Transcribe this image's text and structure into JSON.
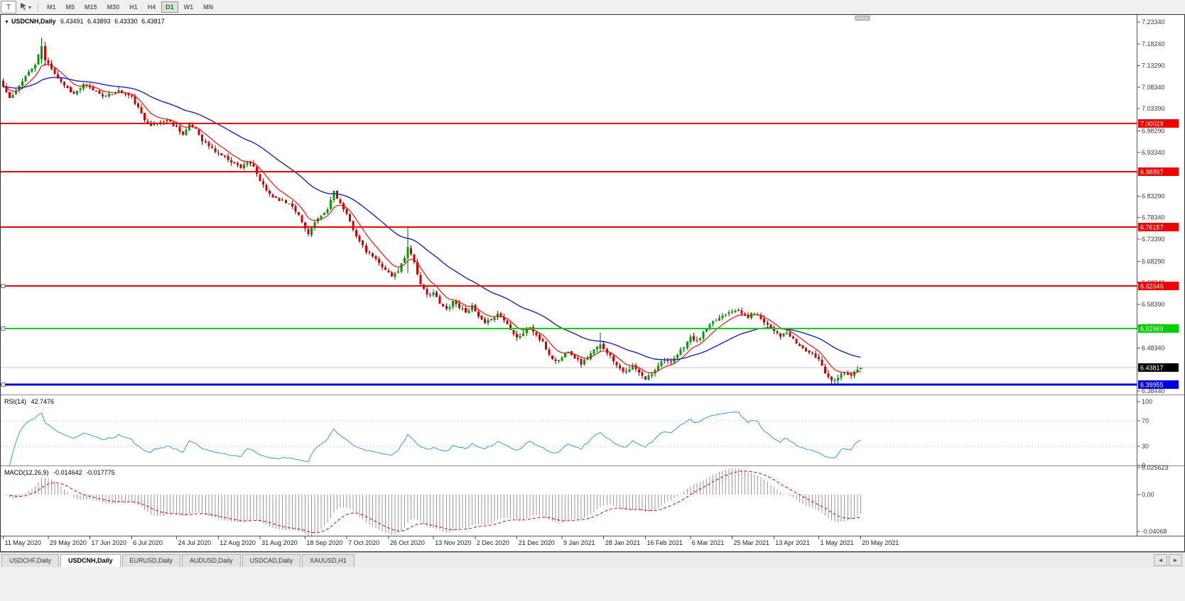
{
  "toolbar": {
    "t_label": "T",
    "timeframes": [
      "M1",
      "M5",
      "M15",
      "M30",
      "H1",
      "H4",
      "D1",
      "W1",
      "MN"
    ],
    "active_timeframe": "D1"
  },
  "chart": {
    "symbol": "USDCNH,Daily",
    "expand_icon": "▼",
    "ohlc": {
      "open": "6.43491",
      "high": "6.43893",
      "low": "6.43330",
      "close": "6.43817"
    },
    "current_price": {
      "value": "6.43817",
      "line_color": "#C8C8C8",
      "box_color": "#000000"
    },
    "price_axis": {
      "ticks": [
        "7.23340",
        "7.18240",
        "7.13290",
        "7.08340",
        "7.03390",
        "6.98290",
        "6.93340",
        "6.88390",
        "6.83290",
        "6.78340",
        "6.73390",
        "6.68290",
        "6.63340",
        "6.58390",
        "6.53290",
        "6.48340",
        "6.43390",
        "6.38440"
      ]
    },
    "hlines": [
      {
        "value": "7.00029",
        "color": "#F00000",
        "width": 2,
        "handle": false
      },
      {
        "value": "6.88897",
        "color": "#F00000",
        "width": 2,
        "handle": false
      },
      {
        "value": "6.76157",
        "color": "#F00000",
        "width": 2,
        "handle": false
      },
      {
        "value": "6.62646",
        "color": "#F00000",
        "width": 2,
        "handle": true
      },
      {
        "value": "6.52869",
        "color": "#00D000",
        "width": 2,
        "handle": true
      },
      {
        "value": "6.39955",
        "color": "#0000E0",
        "width": 3,
        "handle": true
      }
    ],
    "date_axis": {
      "labels": [
        {
          "text": "11 May 2020",
          "bar": 0
        },
        {
          "text": "29 May 2020",
          "bar": 14
        },
        {
          "text": "17 Jun 2020",
          "bar": 27
        },
        {
          "text": "6 Jul 2020",
          "bar": 40
        },
        {
          "text": "24 Jul 2020",
          "bar": 54
        },
        {
          "text": "12 Aug 2020",
          "bar": 67
        },
        {
          "text": "31 Aug 2020",
          "bar": 80
        },
        {
          "text": "18 Sep 2020",
          "bar": 94
        },
        {
          "text": "7 Oct 2020",
          "bar": 107
        },
        {
          "text": "26 Oct 2020",
          "bar": 120
        },
        {
          "text": "13 Nov 2020",
          "bar": 134
        },
        {
          "text": "2 Dec 2020",
          "bar": 147
        },
        {
          "text": "21 Dec 2020",
          "bar": 160
        },
        {
          "text": "9 Jan 2021",
          "bar": 174
        },
        {
          "text": "28 Jan 2021",
          "bar": 187
        },
        {
          "text": "16 Feb 2021",
          "bar": 200
        },
        {
          "text": "6 Mar 2021",
          "bar": 214
        },
        {
          "text": "25 Mar 2021",
          "bar": 227
        },
        {
          "text": "13 Apr 2021",
          "bar": 240
        },
        {
          "text": "1 May 2021",
          "bar": 254
        },
        {
          "text": "20 May 2021",
          "bar": 267
        }
      ]
    },
    "price_path": {
      "bars": 268,
      "seed": 11,
      "up_color": "#00A000",
      "down_color": "#D40000",
      "up_wick": "#006600",
      "down_wick": "#8B0000",
      "anchors": [
        [
          0,
          7.085
        ],
        [
          2,
          7.058
        ],
        [
          4,
          7.072
        ],
        [
          6,
          7.1
        ],
        [
          8,
          7.118
        ],
        [
          10,
          7.135
        ],
        [
          12,
          7.178
        ],
        [
          13,
          7.145
        ],
        [
          15,
          7.128
        ],
        [
          17,
          7.105
        ],
        [
          19,
          7.088
        ],
        [
          22,
          7.068
        ],
        [
          25,
          7.088
        ],
        [
          28,
          7.078
        ],
        [
          32,
          7.062
        ],
        [
          36,
          7.075
        ],
        [
          40,
          7.06
        ],
        [
          42,
          7.035
        ],
        [
          44,
          7.008
        ],
        [
          46,
          6.998
        ],
        [
          48,
          7.002
        ],
        [
          51,
          7.008
        ],
        [
          54,
          6.992
        ],
        [
          56,
          6.975
        ],
        [
          58,
          6.995
        ],
        [
          60,
          6.988
        ],
        [
          62,
          6.962
        ],
        [
          64,
          6.948
        ],
        [
          66,
          6.935
        ],
        [
          68,
          6.928
        ],
        [
          70,
          6.918
        ],
        [
          72,
          6.908
        ],
        [
          74,
          6.9
        ],
        [
          76,
          6.912
        ],
        [
          78,
          6.898
        ],
        [
          80,
          6.868
        ],
        [
          82,
          6.845
        ],
        [
          84,
          6.832
        ],
        [
          86,
          6.825
        ],
        [
          88,
          6.818
        ],
        [
          90,
          6.812
        ],
        [
          92,
          6.788
        ],
        [
          94,
          6.758
        ],
        [
          95,
          6.748
        ],
        [
          97,
          6.772
        ],
        [
          99,
          6.785
        ],
        [
          101,
          6.802
        ],
        [
          103,
          6.845
        ],
        [
          105,
          6.815
        ],
        [
          107,
          6.788
        ],
        [
          109,
          6.758
        ],
        [
          111,
          6.728
        ],
        [
          113,
          6.705
        ],
        [
          115,
          6.695
        ],
        [
          117,
          6.678
        ],
        [
          119,
          6.665
        ],
        [
          121,
          6.648
        ],
        [
          123,
          6.662
        ],
        [
          125,
          6.692
        ],
        [
          126,
          6.716
        ],
        [
          128,
          6.682
        ],
        [
          130,
          6.628
        ],
        [
          132,
          6.605
        ],
        [
          134,
          6.612
        ],
        [
          136,
          6.585
        ],
        [
          138,
          6.572
        ],
        [
          140,
          6.592
        ],
        [
          142,
          6.578
        ],
        [
          144,
          6.568
        ],
        [
          146,
          6.578
        ],
        [
          148,
          6.555
        ],
        [
          150,
          6.538
        ],
        [
          152,
          6.552
        ],
        [
          154,
          6.562
        ],
        [
          156,
          6.548
        ],
        [
          158,
          6.528
        ],
        [
          160,
          6.508
        ],
        [
          162,
          6.518
        ],
        [
          164,
          6.532
        ],
        [
          166,
          6.512
        ],
        [
          168,
          6.495
        ],
        [
          170,
          6.468
        ],
        [
          172,
          6.452
        ],
        [
          174,
          6.462
        ],
        [
          176,
          6.478
        ],
        [
          178,
          6.462
        ],
        [
          180,
          6.448
        ],
        [
          182,
          6.462
        ],
        [
          184,
          6.478
        ],
        [
          186,
          6.492
        ],
        [
          188,
          6.475
        ],
        [
          190,
          6.455
        ],
        [
          192,
          6.438
        ],
        [
          194,
          6.425
        ],
        [
          196,
          6.442
        ],
        [
          198,
          6.425
        ],
        [
          200,
          6.412
        ],
        [
          202,
          6.425
        ],
        [
          204,
          6.445
        ],
        [
          206,
          6.458
        ],
        [
          208,
          6.448
        ],
        [
          210,
          6.468
        ],
        [
          212,
          6.488
        ],
        [
          214,
          6.508
        ],
        [
          216,
          6.498
        ],
        [
          218,
          6.518
        ],
        [
          220,
          6.535
        ],
        [
          222,
          6.548
        ],
        [
          224,
          6.558
        ],
        [
          226,
          6.568
        ],
        [
          228,
          6.572
        ],
        [
          230,
          6.562
        ],
        [
          232,
          6.555
        ],
        [
          234,
          6.565
        ],
        [
          236,
          6.552
        ],
        [
          238,
          6.538
        ],
        [
          240,
          6.525
        ],
        [
          242,
          6.512
        ],
        [
          244,
          6.518
        ],
        [
          246,
          6.502
        ],
        [
          248,
          6.488
        ],
        [
          250,
          6.478
        ],
        [
          252,
          6.468
        ],
        [
          254,
          6.458
        ],
        [
          256,
          6.428
        ],
        [
          258,
          6.408
        ],
        [
          260,
          6.418
        ],
        [
          262,
          6.428
        ],
        [
          264,
          6.42
        ],
        [
          266,
          6.434
        ],
        [
          267,
          6.438
        ]
      ],
      "overrides": [
        [
          12,
          7.148,
          7.1964,
          7.138,
          7.178
        ],
        [
          13,
          7.178,
          7.188,
          7.132,
          7.145
        ],
        [
          126,
          6.69,
          6.7635,
          6.656,
          6.716
        ],
        [
          186,
          6.482,
          6.519,
          6.474,
          6.492
        ],
        [
          267,
          6.43491,
          6.43893,
          6.4333,
          6.43817
        ]
      ]
    },
    "moving_averages": [
      {
        "name": "fast",
        "period": 8,
        "color": "#FF0000"
      },
      {
        "name": "slow",
        "period": 34,
        "color": "#2020C8"
      }
    ]
  },
  "rsi": {
    "label": "RSI(14)",
    "value": "42.7476",
    "period": 14,
    "color": "#4AA3E0",
    "levels": [
      100,
      70,
      30,
      0
    ]
  },
  "macd": {
    "label": "MACD(12,26,9)",
    "value_main": "-0.014642",
    "value_signal": "-0.017775",
    "hist_color": "#9A9A9A",
    "signal_color": "#E00000",
    "axis": [
      "0.025623",
      "0.00",
      "-0.04068"
    ]
  },
  "tabs": {
    "items": [
      "USDCHF,Daily",
      "USDCNH,Daily",
      "EURUSD,Daily",
      "AUDUSD,Daily",
      "USDCAD,Daily",
      "XAUUSD,H1"
    ],
    "active": "USDCNH,Daily"
  }
}
